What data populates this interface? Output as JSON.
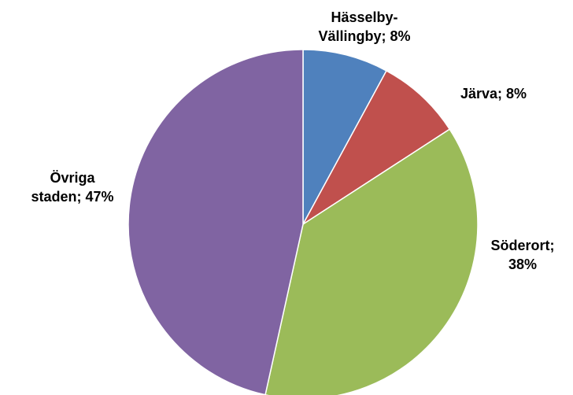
{
  "chart_data": {
    "type": "pie",
    "title": "",
    "categories": [
      "Hässelby-Vällingby",
      "Järva",
      "Söderort",
      "Övriga staden"
    ],
    "values": [
      8,
      8,
      38,
      47
    ],
    "unit": "%",
    "start_angle_deg": 0,
    "direction": "clockwise",
    "colors": [
      "#4F81BD",
      "#C0504D",
      "#9BBB59",
      "#8064A2"
    ],
    "slice_border_color": "#FFFFFF",
    "legend": "none",
    "data_labels": [
      {
        "lines": [
          "Hässelby-",
          "Vällingby; 8%"
        ]
      },
      {
        "lines": [
          "Järva; 8%"
        ]
      },
      {
        "lines": [
          "Söderort;",
          "38%"
        ]
      },
      {
        "lines": [
          "Övriga",
          "staden; 47%"
        ]
      }
    ]
  }
}
